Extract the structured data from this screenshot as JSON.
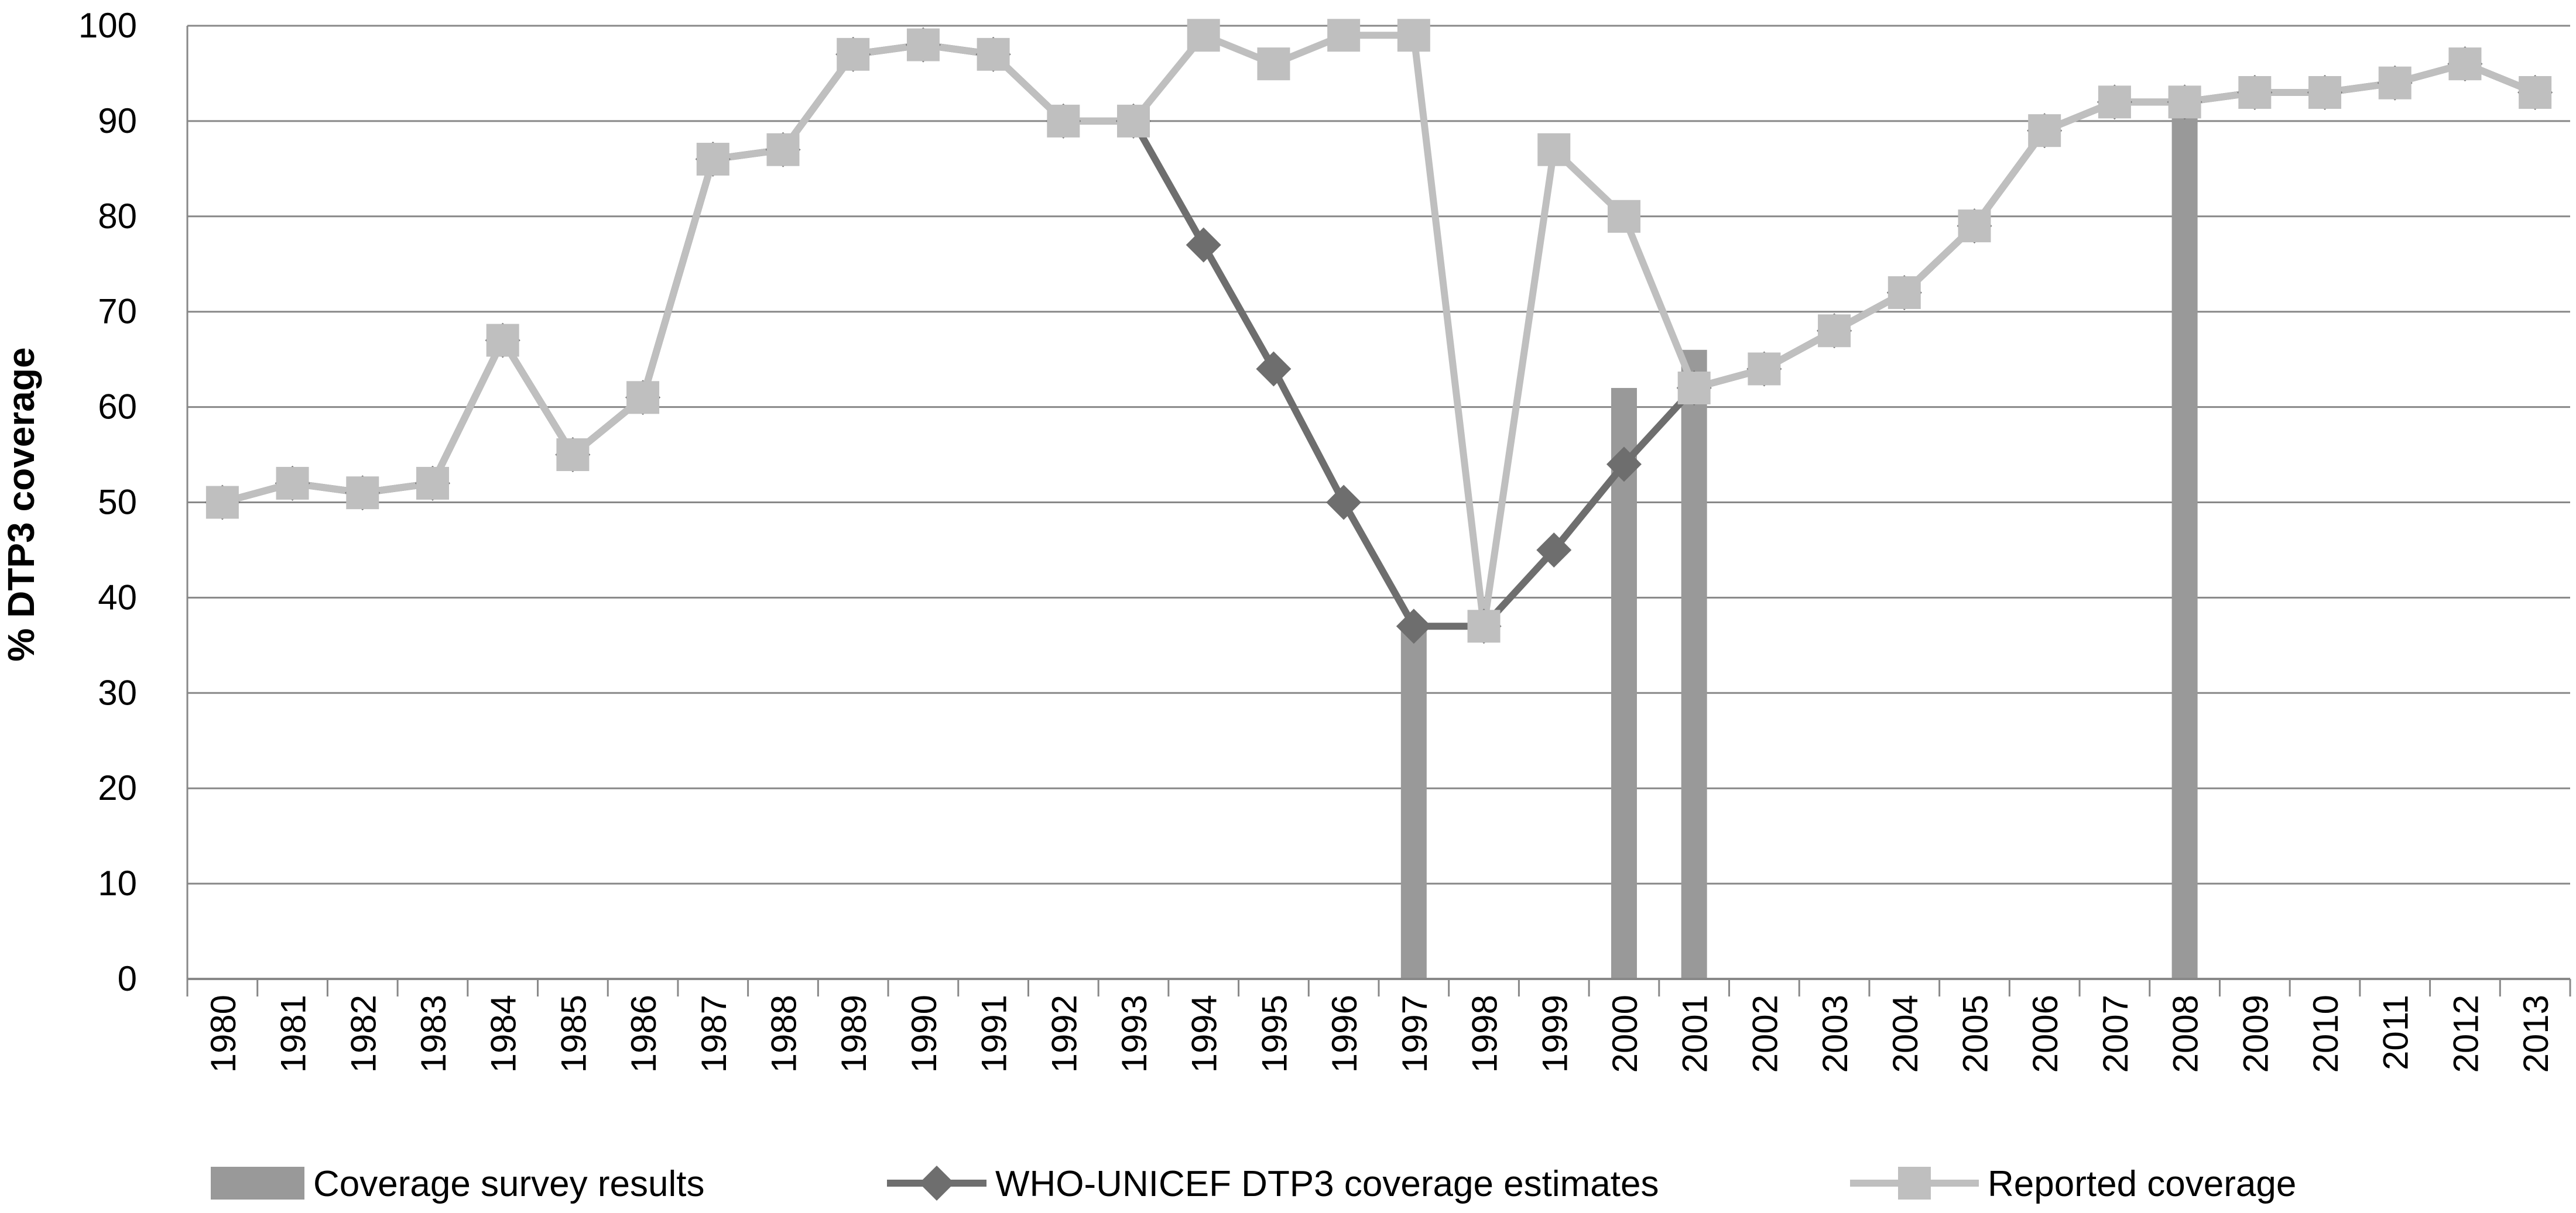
{
  "chart_data": {
    "type": "line",
    "title": "",
    "xlabel": "",
    "ylabel": "% DTP3 coverage",
    "ylim": [
      0,
      100
    ],
    "yticks": [
      "0",
      "10",
      "20",
      "30",
      "40",
      "50",
      "60",
      "70",
      "80",
      "90",
      "100"
    ],
    "grid": true,
    "legend_position": "bottom",
    "categories": [
      "1980",
      "1981",
      "1982",
      "1983",
      "1984",
      "1985",
      "1986",
      "1987",
      "1988",
      "1989",
      "1990",
      "1991",
      "1992",
      "1993",
      "1994",
      "1995",
      "1996",
      "1997",
      "1998",
      "1999",
      "2000",
      "2001",
      "2002",
      "2003",
      "2004",
      "2005",
      "2006",
      "2007",
      "2008",
      "2009",
      "2010",
      "2011",
      "2012",
      "2013"
    ],
    "series": [
      {
        "name": "Coverage survey results",
        "kind": "bar",
        "color": "#999999",
        "values": [
          null,
          null,
          null,
          null,
          null,
          null,
          null,
          null,
          null,
          null,
          null,
          null,
          null,
          null,
          null,
          null,
          null,
          37,
          null,
          null,
          62,
          66,
          null,
          null,
          null,
          null,
          null,
          null,
          92,
          null,
          null,
          null,
          null,
          null
        ]
      },
      {
        "name": "WHO-UNICEF DTP3 coverage estimates",
        "kind": "line",
        "marker": "diamond",
        "color": "#6e6e6e",
        "values": [
          50,
          52,
          51,
          52,
          67,
          55,
          61,
          86,
          87,
          97,
          98,
          97,
          90,
          90,
          77,
          64,
          50,
          37,
          37,
          45,
          54,
          62,
          64,
          68,
          72,
          79,
          89,
          92,
          92,
          93,
          93,
          94,
          96,
          93
        ]
      },
      {
        "name": "Reported coverage",
        "kind": "line",
        "marker": "square",
        "color": "#bfbfbf",
        "values": [
          50,
          52,
          51,
          52,
          67,
          55,
          61,
          86,
          87,
          97,
          98,
          97,
          90,
          90,
          99,
          96,
          99,
          99,
          37,
          87,
          80,
          62,
          64,
          68,
          72,
          79,
          89,
          92,
          92,
          93,
          93,
          94,
          96,
          93
        ]
      }
    ]
  }
}
